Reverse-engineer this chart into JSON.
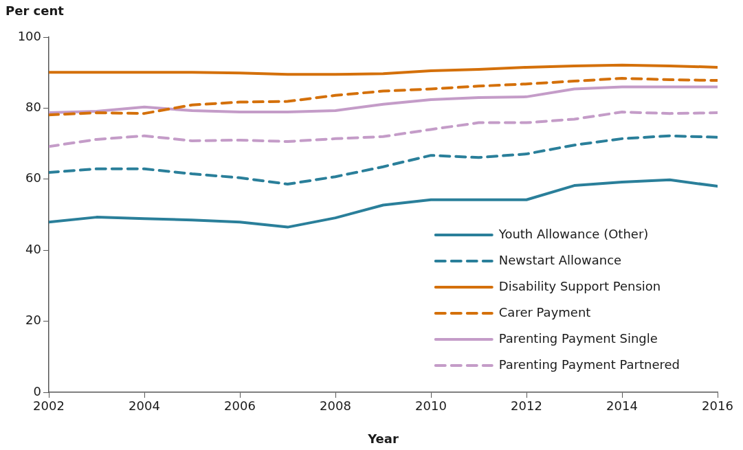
{
  "chart_data": {
    "type": "line",
    "ylabel": "Per cent",
    "xlabel": "Year",
    "x": [
      2002,
      2003,
      2004,
      2005,
      2006,
      2007,
      2008,
      2009,
      2010,
      2011,
      2012,
      2013,
      2014,
      2015,
      2016
    ],
    "xlim": [
      2002,
      2016
    ],
    "xticks": [
      2002,
      2004,
      2006,
      2008,
      2010,
      2012,
      2014,
      2016
    ],
    "ylim": [
      0,
      100
    ],
    "yticks": [
      0,
      20,
      40,
      60,
      80,
      100
    ],
    "grid": false,
    "legend": "bottom right",
    "marker": "none",
    "series": [
      {
        "name": "Youth Allowance (Other)",
        "color": "#2a7f9a",
        "line_style": "solid",
        "values": [
          47.9,
          49.3,
          48.9,
          48.5,
          47.9,
          46.5,
          49.1,
          52.7,
          54.2,
          54.2,
          54.2,
          58.2,
          59.2,
          59.8,
          58.0
        ]
      },
      {
        "name": "Newstart Allowance",
        "color": "#2a7f9a",
        "line_style": "dashed",
        "values": [
          61.9,
          62.9,
          62.9,
          61.5,
          60.4,
          58.6,
          60.7,
          63.5,
          66.7,
          66.1,
          67.1,
          69.6,
          71.4,
          72.2,
          71.8
        ]
      },
      {
        "name": "Disability Support Pension",
        "color": "#d4700a",
        "line_style": "solid",
        "values": [
          90.1,
          90.1,
          90.1,
          90.1,
          89.9,
          89.5,
          89.5,
          89.7,
          90.5,
          90.9,
          91.5,
          91.9,
          92.1,
          91.9,
          91.5
        ]
      },
      {
        "name": "Carer Payment",
        "color": "#d4700a",
        "line_style": "dashed",
        "values": [
          78.1,
          78.7,
          78.5,
          80.9,
          81.7,
          81.9,
          83.6,
          84.8,
          85.4,
          86.2,
          86.8,
          87.6,
          88.4,
          88.0,
          87.8
        ]
      },
      {
        "name": "Parenting Payment Single",
        "color": "#c49cc8",
        "line_style": "solid",
        "values": [
          78.7,
          79.1,
          80.3,
          79.3,
          78.9,
          78.9,
          79.3,
          81.1,
          82.4,
          83.0,
          83.2,
          85.4,
          86.0,
          86.0,
          86.0
        ]
      },
      {
        "name": "Parenting Payment Partnered",
        "color": "#c49cc8",
        "line_style": "dashed",
        "values": [
          69.2,
          71.2,
          72.2,
          70.8,
          71.0,
          70.6,
          71.4,
          72.0,
          74.0,
          75.9,
          75.9,
          76.9,
          78.9,
          78.5,
          78.7
        ]
      }
    ]
  }
}
